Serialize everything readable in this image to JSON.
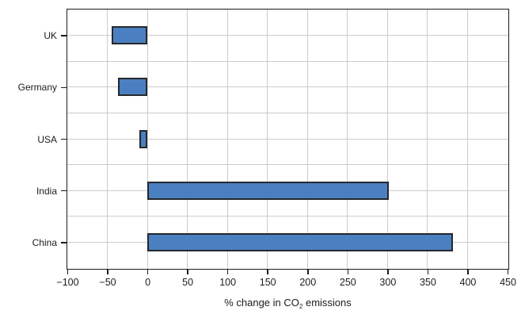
{
  "chart_data": {
    "type": "bar",
    "orientation": "horizontal",
    "title": "",
    "xlabel": "% change in CO₂ emissions",
    "xlabel_parts": {
      "prefix": "% change in CO",
      "sub": "2",
      "suffix": " emissions"
    },
    "categories": [
      "UK",
      "Germany",
      "USA",
      "India",
      "China"
    ],
    "values": [
      -45,
      -37,
      -10,
      302,
      382
    ],
    "xlim": [
      -100,
      450
    ],
    "x_ticks": [
      -100,
      -50,
      0,
      50,
      100,
      150,
      200,
      250,
      300,
      350,
      400,
      450
    ],
    "x_tick_step": 50,
    "grid": "vertical gridlines every 50; horizontal gridlines every half category row",
    "legend": "none",
    "colors": {
      "bar_fill": "#4a80c1",
      "bar_border": "#26282b",
      "gridline": "#cbcbcb",
      "axis_box": "#1c1c1c",
      "tick": "#1c1c1c",
      "text": "#1c1c1c",
      "background": "#ffffff"
    }
  }
}
